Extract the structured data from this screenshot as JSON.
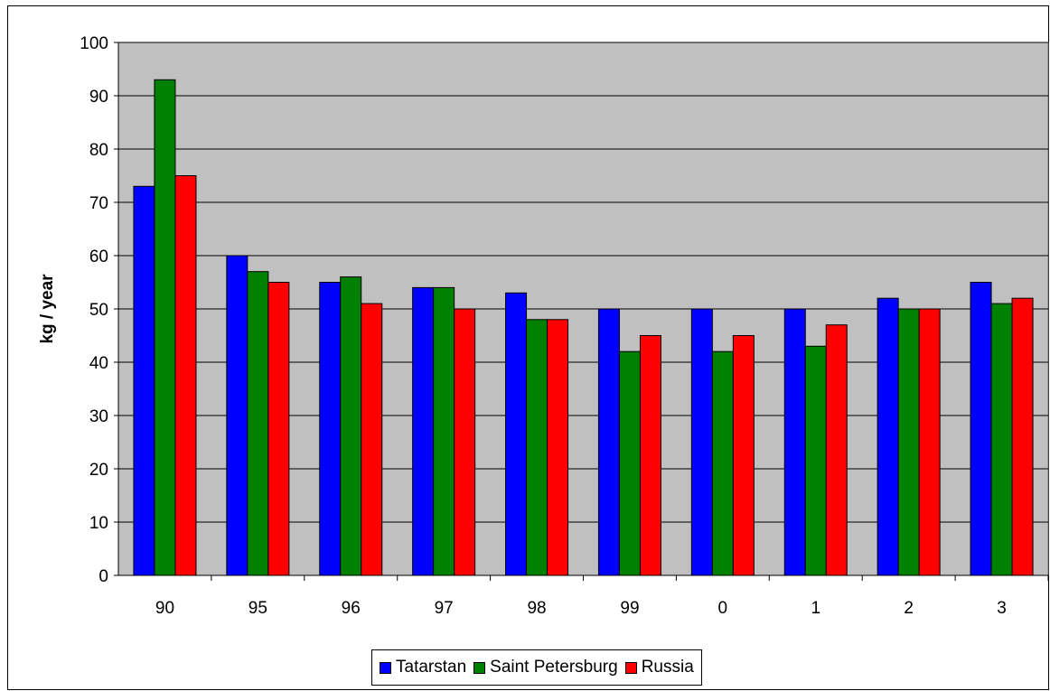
{
  "chart_data": {
    "type": "bar",
    "title": "",
    "xlabel": "",
    "ylabel": "kg / year",
    "ylim": [
      0,
      100
    ],
    "yticks": [
      0,
      10,
      20,
      30,
      40,
      50,
      60,
      70,
      80,
      90,
      100
    ],
    "categories": [
      "90",
      "95",
      "96",
      "97",
      "98",
      "99",
      "0",
      "1",
      "2",
      "3"
    ],
    "grid": true,
    "legend_position": "bottom",
    "plot_background": "#c0c0c0",
    "series": [
      {
        "name": "Tatarstan",
        "color": "#0000ff",
        "values": [
          73,
          60,
          55,
          54,
          53,
          50,
          50,
          50,
          52,
          55
        ]
      },
      {
        "name": "Saint Petersburg",
        "color": "#008000",
        "values": [
          93,
          57,
          56,
          54,
          48,
          42,
          42,
          43,
          50,
          51
        ]
      },
      {
        "name": "Russia",
        "color": "#ff0000",
        "values": [
          75,
          55,
          51,
          50,
          48,
          45,
          45,
          47,
          50,
          52
        ]
      }
    ]
  }
}
